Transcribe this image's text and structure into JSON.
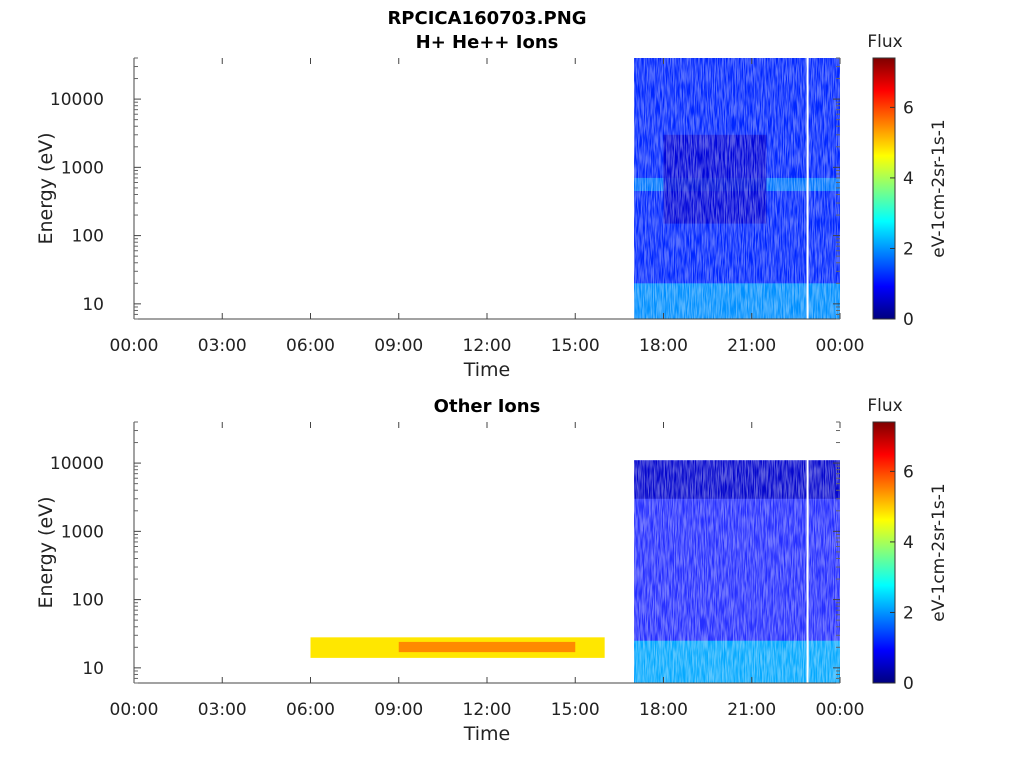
{
  "figure": {
    "title_line1": "RPCICA160703.PNG"
  },
  "chart_data": [
    {
      "type": "heatmap",
      "title": "H+ He++ Ions",
      "xlabel": "Time",
      "ylabel": "Energy (eV)",
      "xlim": [
        "00:00",
        "24:00"
      ],
      "ylim": [
        6,
        40000
      ],
      "y_scale": "log",
      "x_tick_labels": [
        "00:00",
        "03:00",
        "06:00",
        "09:00",
        "12:00",
        "15:00",
        "18:00",
        "21:00",
        "00:00"
      ],
      "y_tick_values": [
        10,
        100,
        1000,
        10000
      ],
      "y_tick_labels": [
        "10",
        "100",
        "1000",
        "10000"
      ],
      "colorbar": {
        "title": "Flux",
        "label": "eV-1cm-2sr-1s-1",
        "range": [
          0,
          7.4
        ],
        "tick_values": [
          0,
          2,
          4,
          6
        ],
        "tick_labels": [
          "0",
          "2",
          "4",
          "6"
        ],
        "colormap": "jet"
      },
      "data_regions": [
        {
          "time_start": "17:00",
          "time_end": "24:00",
          "energy_min": 6,
          "energy_max": 40000,
          "flux_level": 1.2,
          "note": ""
        },
        {
          "time_start": "17:00",
          "time_end": "24:00",
          "energy_min": 6,
          "energy_max": 20,
          "flux_level": 2.1,
          "note": ""
        },
        {
          "time_start": "17:00",
          "time_end": "24:00",
          "energy_min": 450,
          "energy_max": 700,
          "flux_level": 1.9,
          "note": ""
        },
        {
          "time_start": "18:00",
          "time_end": "21:30",
          "energy_min": 150,
          "energy_max": 3000,
          "flux_level": 0.6,
          "note": ""
        }
      ],
      "data_gap_lines": [
        "23:00"
      ]
    },
    {
      "type": "heatmap",
      "title": "Other Ions",
      "xlabel": "Time",
      "ylabel": "Energy (eV)",
      "xlim": [
        "00:00",
        "24:00"
      ],
      "ylim": [
        6,
        40000
      ],
      "y_scale": "log",
      "x_tick_labels": [
        "00:00",
        "03:00",
        "06:00",
        "09:00",
        "12:00",
        "15:00",
        "18:00",
        "21:00",
        "00:00"
      ],
      "y_tick_values": [
        10,
        100,
        1000,
        10000
      ],
      "y_tick_labels": [
        "10",
        "100",
        "1000",
        "10000"
      ],
      "colorbar": {
        "title": "Flux",
        "label": "eV-1cm-2sr-1s-1",
        "range": [
          0,
          7.4
        ],
        "tick_values": [
          0,
          2,
          4,
          6
        ],
        "tick_labels": [
          "0",
          "2",
          "4",
          "6"
        ],
        "colormap": "jet"
      },
      "data_regions": [
        {
          "time_start": "06:00",
          "time_end": "16:00",
          "energy_min": 14,
          "energy_max": 28,
          "flux_level": 4.8,
          "note": ""
        },
        {
          "time_start": "09:00",
          "time_end": "15:00",
          "energy_min": 17,
          "energy_max": 24,
          "flux_level": 5.6,
          "note": ""
        },
        {
          "time_start": "17:00",
          "time_end": "24:00",
          "energy_min": 6,
          "energy_max": 11000,
          "flux_level": 1.0,
          "note": ""
        },
        {
          "time_start": "17:00",
          "time_end": "24:00",
          "energy_min": 6,
          "energy_max": 25,
          "flux_level": 2.3,
          "note": ""
        },
        {
          "time_start": "17:00",
          "time_end": "24:00",
          "energy_min": 3000,
          "energy_max": 11000,
          "flux_level": 0.5,
          "note": ""
        }
      ],
      "data_gap_lines": [
        "23:00"
      ]
    }
  ]
}
